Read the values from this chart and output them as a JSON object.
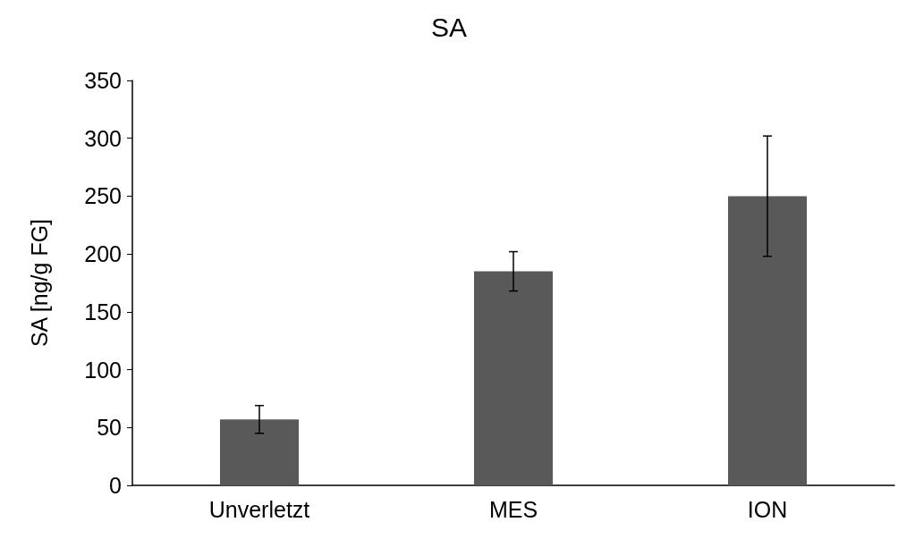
{
  "chart_data": {
    "type": "bar",
    "title": "SA",
    "ylabel": "SA [ng/g FG]",
    "categories": [
      "Unverletzt",
      "MES",
      "ION"
    ],
    "series": [
      {
        "color": "#595959",
        "values": [
          57,
          185,
          250
        ],
        "errors": [
          12,
          17,
          52
        ]
      }
    ],
    "ylim": [
      0,
      350
    ],
    "yticks": [
      0,
      50,
      100,
      150,
      200,
      250,
      300,
      350
    ],
    "grid": false
  }
}
